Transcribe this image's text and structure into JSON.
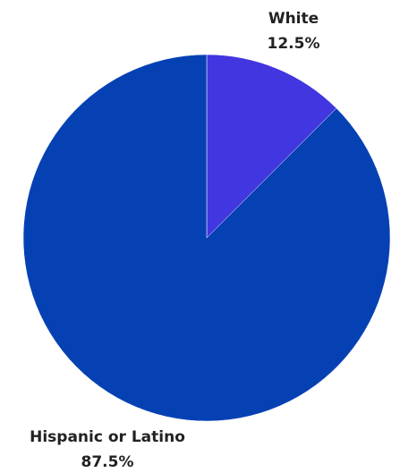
{
  "chart_data": {
    "type": "pie",
    "slices": [
      {
        "label": "White",
        "value": 12.5,
        "value_label": "12.5%",
        "color": "#4236E0"
      },
      {
        "label": "Hispanic or Latino",
        "value": 87.5,
        "value_label": "87.5%",
        "color": "#0641B4"
      }
    ],
    "start_angle_deg": 0,
    "direction": "clockwise",
    "title": "",
    "legend": "none"
  }
}
